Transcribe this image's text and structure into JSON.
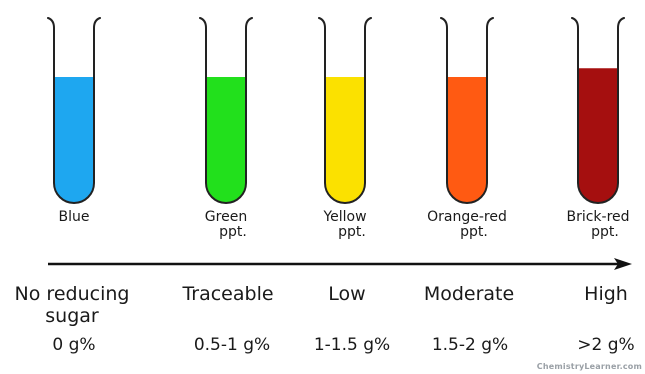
{
  "tubes": [
    {
      "color": "#1ea7f0",
      "fill": 0.72,
      "label_lines": [
        "Blue"
      ],
      "level_lines": [
        "No reducing",
        "sugar"
      ],
      "amount": "0 g%"
    },
    {
      "color": "#22e01c",
      "fill": 0.72,
      "label_lines": [
        "Green",
        "ppt."
      ],
      "level_lines": [
        "Traceable"
      ],
      "amount": "0.5-1 g%"
    },
    {
      "color": "#fbe100",
      "fill": 0.72,
      "label_lines": [
        "Yellow",
        "ppt."
      ],
      "level_lines": [
        "Low"
      ],
      "amount": "1-1.5 g%"
    },
    {
      "color": "#ff5a12",
      "fill": 0.72,
      "label_lines": [
        "Orange-red",
        "ppt."
      ],
      "level_lines": [
        "Moderate"
      ],
      "amount": "1.5-2 g%"
    },
    {
      "color": "#a50f0f",
      "fill": 0.77,
      "label_lines": [
        "Brick-red",
        "ppt."
      ],
      "level_lines": [
        "High"
      ],
      "amount": ">2 g%"
    }
  ],
  "arrow_color": "#111111",
  "tube_outline_color": "#222222",
  "watermark": "ChemistryLearner.com"
}
